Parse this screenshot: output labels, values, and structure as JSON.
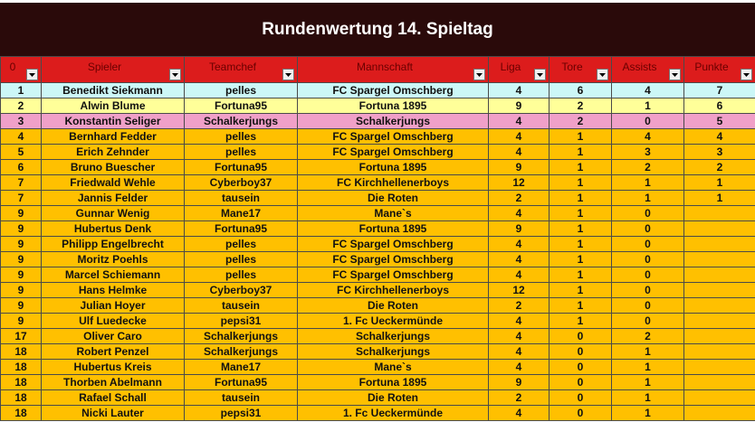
{
  "title": "Rundenwertung 14. Spieltag",
  "columns": [
    {
      "key": "rank",
      "label": "0"
    },
    {
      "key": "player",
      "label": "Spieler"
    },
    {
      "key": "teamchef",
      "label": "Teamchef"
    },
    {
      "key": "team",
      "label": "Mannschaft"
    },
    {
      "key": "liga",
      "label": "Liga"
    },
    {
      "key": "tore",
      "label": "Tore"
    },
    {
      "key": "assists",
      "label": "Assists"
    },
    {
      "key": "punkte",
      "label": "Punkte"
    }
  ],
  "colors": {
    "title_bg": "#2a0a0a",
    "header_bg": "#dc1c1c",
    "row_cyan": "#ccf7f7",
    "row_yellow": "#ffff99",
    "row_pink": "#f0a0c8",
    "row_orange": "#ffc000"
  },
  "rows": [
    {
      "rank": "1",
      "player": "Benedikt Siekmann",
      "teamchef": "pelles",
      "team": "FC Spargel Omschberg",
      "liga": "4",
      "tore": "6",
      "assists": "4",
      "punkte": "7",
      "color": "cyan"
    },
    {
      "rank": "2",
      "player": "Alwin Blume",
      "teamchef": "Fortuna95",
      "team": "Fortuna 1895",
      "liga": "9",
      "tore": "2",
      "assists": "1",
      "punkte": "6",
      "color": "yellow"
    },
    {
      "rank": "3",
      "player": "Konstantin Seliger",
      "teamchef": "Schalkerjungs",
      "team": "Schalkerjungs",
      "liga": "4",
      "tore": "2",
      "assists": "0",
      "punkte": "5",
      "color": "pink"
    },
    {
      "rank": "4",
      "player": "Bernhard Fedder",
      "teamchef": "pelles",
      "team": "FC Spargel Omschberg",
      "liga": "4",
      "tore": "1",
      "assists": "4",
      "punkte": "4",
      "color": "orange"
    },
    {
      "rank": "5",
      "player": "Erich Zehnder",
      "teamchef": "pelles",
      "team": "FC Spargel Omschberg",
      "liga": "4",
      "tore": "1",
      "assists": "3",
      "punkte": "3",
      "color": "orange"
    },
    {
      "rank": "6",
      "player": "Bruno Buescher",
      "teamchef": "Fortuna95",
      "team": "Fortuna 1895",
      "liga": "9",
      "tore": "1",
      "assists": "2",
      "punkte": "2",
      "color": "orange"
    },
    {
      "rank": "7",
      "player": "Friedwald Wehle",
      "teamchef": "Cyberboy37",
      "team": "FC Kirchhellenerboys",
      "liga": "12",
      "tore": "1",
      "assists": "1",
      "punkte": "1",
      "color": "orange"
    },
    {
      "rank": "7",
      "player": "Jannis Felder",
      "teamchef": "tausein",
      "team": "Die Roten",
      "liga": "2",
      "tore": "1",
      "assists": "1",
      "punkte": "1",
      "color": "orange"
    },
    {
      "rank": "9",
      "player": "Gunnar Wenig",
      "teamchef": "Mane17",
      "team": "Mane`s",
      "liga": "4",
      "tore": "1",
      "assists": "0",
      "punkte": "",
      "color": "orange"
    },
    {
      "rank": "9",
      "player": "Hubertus Denk",
      "teamchef": "Fortuna95",
      "team": "Fortuna 1895",
      "liga": "9",
      "tore": "1",
      "assists": "0",
      "punkte": "",
      "color": "orange"
    },
    {
      "rank": "9",
      "player": "Philipp Engelbrecht",
      "teamchef": "pelles",
      "team": "FC Spargel Omschberg",
      "liga": "4",
      "tore": "1",
      "assists": "0",
      "punkte": "",
      "color": "orange"
    },
    {
      "rank": "9",
      "player": "Moritz Poehls",
      "teamchef": "pelles",
      "team": "FC Spargel Omschberg",
      "liga": "4",
      "tore": "1",
      "assists": "0",
      "punkte": "",
      "color": "orange"
    },
    {
      "rank": "9",
      "player": "Marcel Schiemann",
      "teamchef": "pelles",
      "team": "FC Spargel Omschberg",
      "liga": "4",
      "tore": "1",
      "assists": "0",
      "punkte": "",
      "color": "orange"
    },
    {
      "rank": "9",
      "player": "Hans Helmke",
      "teamchef": "Cyberboy37",
      "team": "FC Kirchhellenerboys",
      "liga": "12",
      "tore": "1",
      "assists": "0",
      "punkte": "",
      "color": "orange"
    },
    {
      "rank": "9",
      "player": "Julian Hoyer",
      "teamchef": "tausein",
      "team": "Die Roten",
      "liga": "2",
      "tore": "1",
      "assists": "0",
      "punkte": "",
      "color": "orange"
    },
    {
      "rank": "9",
      "player": "Ulf Luedecke",
      "teamchef": "pepsi31",
      "team": "1. Fc Ueckermünde",
      "liga": "4",
      "tore": "1",
      "assists": "0",
      "punkte": "",
      "color": "orange"
    },
    {
      "rank": "17",
      "player": "Oliver Caro",
      "teamchef": "Schalkerjungs",
      "team": "Schalkerjungs",
      "liga": "4",
      "tore": "0",
      "assists": "2",
      "punkte": "",
      "color": "orange"
    },
    {
      "rank": "18",
      "player": "Robert Penzel",
      "teamchef": "Schalkerjungs",
      "team": "Schalkerjungs",
      "liga": "4",
      "tore": "0",
      "assists": "1",
      "punkte": "",
      "color": "orange"
    },
    {
      "rank": "18",
      "player": "Hubertus Kreis",
      "teamchef": "Mane17",
      "team": "Mane`s",
      "liga": "4",
      "tore": "0",
      "assists": "1",
      "punkte": "",
      "color": "orange"
    },
    {
      "rank": "18",
      "player": "Thorben Abelmann",
      "teamchef": "Fortuna95",
      "team": "Fortuna 1895",
      "liga": "9",
      "tore": "0",
      "assists": "1",
      "punkte": "",
      "color": "orange"
    },
    {
      "rank": "18",
      "player": "Rafael Schall",
      "teamchef": "tausein",
      "team": "Die Roten",
      "liga": "2",
      "tore": "0",
      "assists": "1",
      "punkte": "",
      "color": "orange"
    },
    {
      "rank": "18",
      "player": "Nicki Lauter",
      "teamchef": "pepsi31",
      "team": "1. Fc Ueckermünde",
      "liga": "4",
      "tore": "0",
      "assists": "1",
      "punkte": "",
      "color": "orange"
    }
  ]
}
